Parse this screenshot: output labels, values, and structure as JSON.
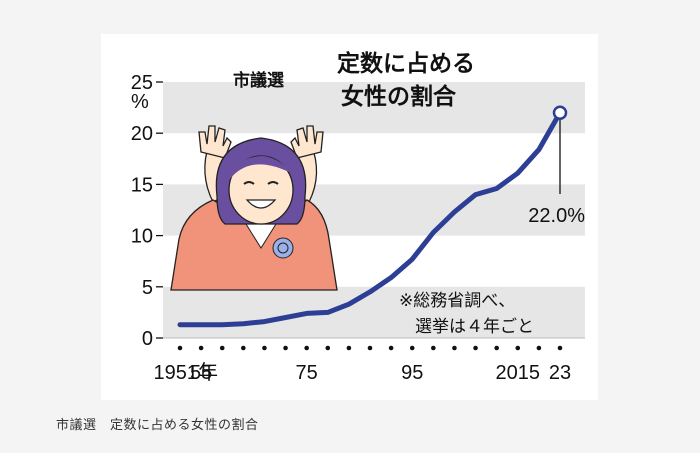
{
  "caption": "市議選　定数に占める女性の割合",
  "chart_data": {
    "type": "line",
    "title_sub": "市議選",
    "title_main_line1": "定数に占める",
    "title_main_line2": "女性の割合",
    "y_unit": "%",
    "ylim": [
      0,
      25
    ],
    "y_ticks": [
      "0",
      "5",
      "10",
      "15",
      "20",
      "25"
    ],
    "x_tick_labels": [
      {
        "label": "1951年",
        "year": 1951
      },
      {
        "label": "55",
        "year": 1955
      },
      {
        "label": "75",
        "year": 1975
      },
      {
        "label": "95",
        "year": 1995
      },
      {
        "label": "2015",
        "year": 2015
      },
      {
        "label": "23",
        "year": 2023
      }
    ],
    "x": [
      1951,
      1955,
      1959,
      1963,
      1967,
      1971,
      1975,
      1979,
      1983,
      1987,
      1991,
      1995,
      1999,
      2003,
      2007,
      2011,
      2015,
      2019,
      2023
    ],
    "values": [
      1.3,
      1.3,
      1.3,
      1.4,
      1.6,
      2.0,
      2.4,
      2.5,
      3.3,
      4.5,
      5.9,
      7.7,
      10.3,
      12.3,
      14.0,
      14.6,
      16.1,
      18.4,
      22.0
    ],
    "highlight": {
      "year": 2023,
      "label": "22.0%"
    },
    "grid_bands": true,
    "note_line1": "※総務省調べ、",
    "note_line2": "選挙は４年ごと",
    "colors": {
      "line": "#2c3f95",
      "band": "#e6e6e6",
      "illustration_jacket": "#f0937a",
      "illustration_hair": "#6a4fa0"
    }
  }
}
